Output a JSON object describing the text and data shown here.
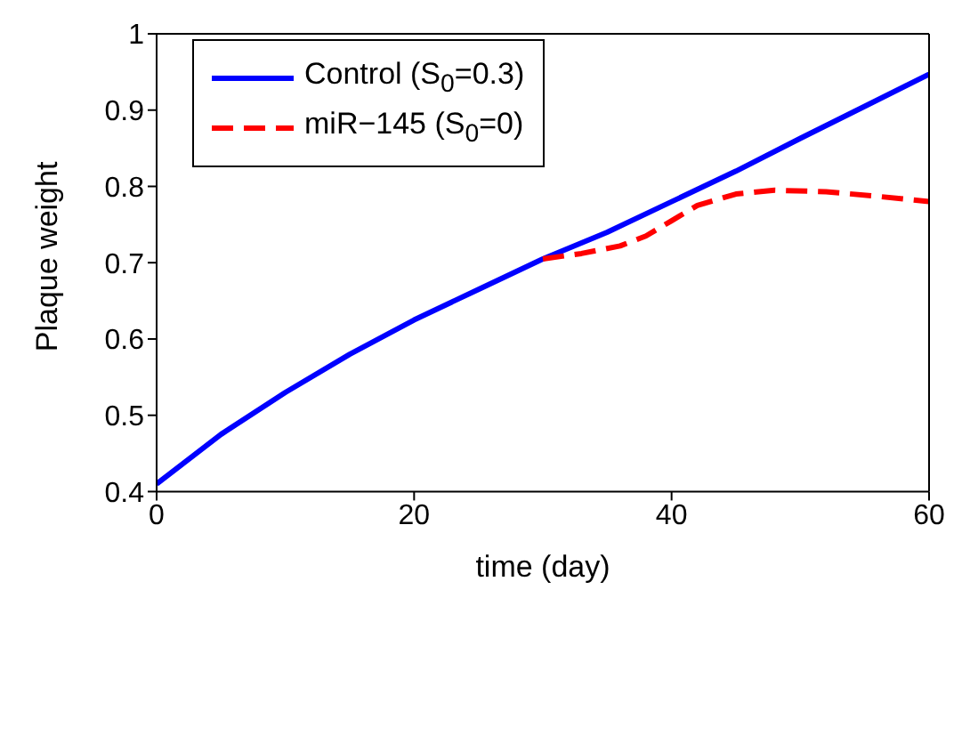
{
  "chart_data": {
    "type": "line",
    "xlabel": "time (day)",
    "ylabel": "Plaque weight",
    "xlim": [
      0,
      60
    ],
    "xticks": [
      0,
      20,
      40,
      60
    ],
    "ylim": [
      0.4,
      1
    ],
    "yticks": [
      0.4,
      0.5,
      0.6,
      0.7,
      0.8,
      0.9,
      1
    ],
    "legend": "top left",
    "marker": "none",
    "series": [
      {
        "name": "Control (S$_{0}$=0.3)",
        "color": "#0000ff",
        "line_style": "solid",
        "x": [
          0,
          5,
          10,
          15,
          20,
          25,
          30,
          35,
          40,
          45,
          50,
          55,
          60
        ],
        "values": [
          0.41,
          0.475,
          0.53,
          0.58,
          0.625,
          0.665,
          0.705,
          0.74,
          0.78,
          0.82,
          0.863,
          0.905,
          0.947
        ]
      },
      {
        "name": "miR−145 (S$_{0}$=0)",
        "color": "#ff0000",
        "line_style": "dashed",
        "x": [
          30,
          33,
          36,
          38,
          40,
          42,
          45,
          48,
          52,
          56,
          60
        ],
        "values": [
          0.705,
          0.712,
          0.722,
          0.735,
          0.755,
          0.775,
          0.79,
          0.795,
          0.793,
          0.787,
          0.78
        ]
      }
    ]
  }
}
